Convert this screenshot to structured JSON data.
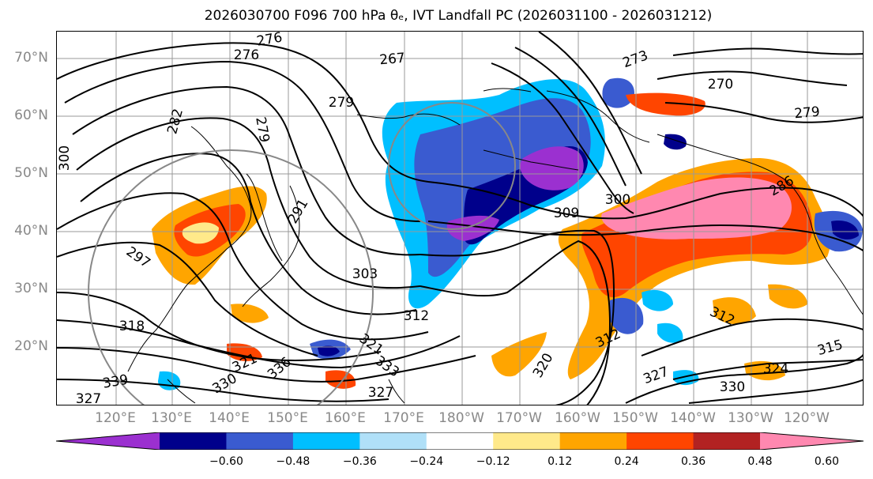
{
  "title": "2026030700 F096 700 hPa θₑ, IVT Landfall PC (2026031100 - 2026031212)",
  "map": {
    "type": "filled contour map with contour lines",
    "projection": "cylindrical",
    "lon_range": [
      "112°E",
      "113°W"
    ],
    "lat_range": [
      "10°N",
      "75°N"
    ],
    "grid": true,
    "lat_labels": [
      "70°N",
      "60°N",
      "50°N",
      "40°N",
      "30°N",
      "20°N"
    ],
    "lon_labels": [
      "120°E",
      "130°E",
      "140°E",
      "150°E",
      "160°E",
      "170°E",
      "180°W",
      "170°W",
      "160°W",
      "150°W",
      "140°W",
      "130°W",
      "120°W"
    ],
    "contour_labels": [
      "276",
      "279",
      "276",
      "267",
      "273",
      "270",
      "279",
      "282",
      "279",
      "300",
      "286",
      "291",
      "309",
      "300",
      "297",
      "303",
      "312",
      "318",
      "321",
      "312",
      "312",
      "315",
      "324",
      "330",
      "327",
      "321",
      "333",
      "336",
      "330",
      "327",
      "339",
      "327",
      "320"
    ]
  },
  "colorbar": {
    "colors": [
      "#9b30d0",
      "#00008b",
      "#3a5bd0",
      "#00bfff",
      "#b0e0f8",
      "#ffffff",
      "#ffe98a",
      "#ffa500",
      "#ff4500",
      "#b22222",
      "#ff88b0"
    ],
    "ticks": [
      "−0.60",
      "−0.48",
      "−0.36",
      "−0.24",
      "−0.12",
      "0.12",
      "0.24",
      "0.36",
      "0.48",
      "0.60"
    ],
    "levels": [
      -0.6,
      -0.48,
      -0.36,
      -0.24,
      -0.12,
      0.12,
      0.24,
      0.36,
      0.48,
      0.6
    ]
  }
}
